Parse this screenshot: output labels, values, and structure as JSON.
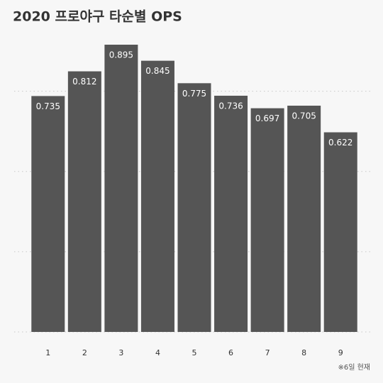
{
  "chart_data": {
    "type": "bar",
    "title": "2020 프로야구 타순별 OPS",
    "note": "※6일 현재",
    "categories": [
      "1",
      "2",
      "3",
      "4",
      "5",
      "6",
      "7",
      "8",
      "9"
    ],
    "values": [
      0.735,
      0.812,
      0.895,
      0.845,
      0.775,
      0.736,
      0.697,
      0.705,
      0.622
    ],
    "color": "#555555",
    "ylim": [
      0,
      1
    ],
    "yticks": [
      0,
      0.25,
      0.5,
      0.75
    ],
    "grid": true
  }
}
